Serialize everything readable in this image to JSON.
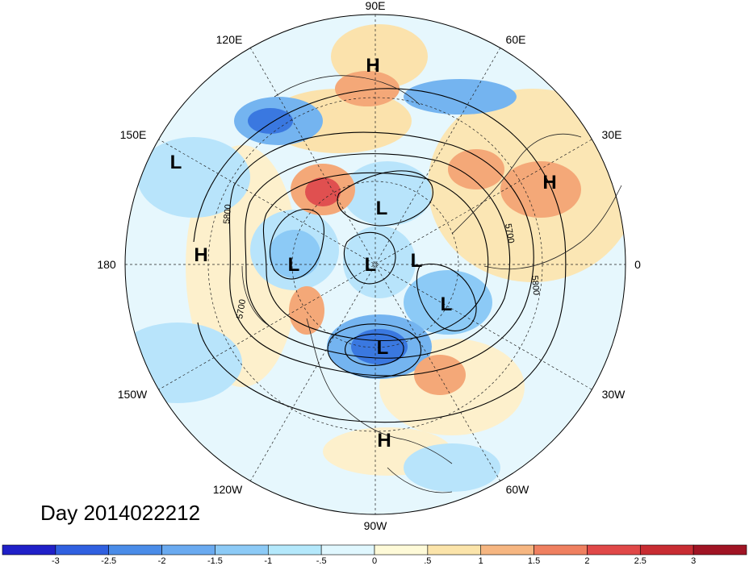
{
  "title": "Day 2014022212",
  "longitude_labels": {
    "deg90E": "90E",
    "deg60E": "60E",
    "deg30E": "30E",
    "deg0": "0",
    "deg30W": "30W",
    "deg60W": "60W",
    "deg90W": "90W",
    "deg120W": "120W",
    "deg150W": "150W",
    "deg180": "180",
    "deg150E": "150E",
    "deg120E": "120E"
  },
  "contour_labels": {
    "c5800a": "5800",
    "c5700a": "5700",
    "c5700b": "5700",
    "c5800b": "5800"
  },
  "pressure_systems": [
    "H",
    "L",
    "H",
    "L",
    "L",
    "L",
    "L",
    "H",
    "L",
    "H"
  ],
  "colorbar": {
    "ticks": [
      "-3",
      "-2.5",
      "-2",
      "-1.5",
      "-1",
      "-.5",
      "0",
      ".5",
      "1",
      "1.5",
      "2",
      "2.5",
      "3"
    ],
    "colors": [
      "#2020c8",
      "#3060e0",
      "#4a8ce8",
      "#6aaaf0",
      "#8ccaf6",
      "#b4e8fb",
      "#e0f7fe",
      "#fefad8",
      "#fbe4aa",
      "#f6b681",
      "#ef8060",
      "#e04848",
      "#c82c32",
      "#a01424"
    ]
  },
  "field_colors": {
    "strong_negative": "#3a78e0",
    "negative": "#74b4f0",
    "weak_negative": "#b8e4fb",
    "neutral_cool": "#dff5fd",
    "neutral_warm": "#fdf6dc",
    "weak_positive": "#fbe2ac",
    "positive": "#f4a878",
    "strong_positive": "#e05050"
  }
}
